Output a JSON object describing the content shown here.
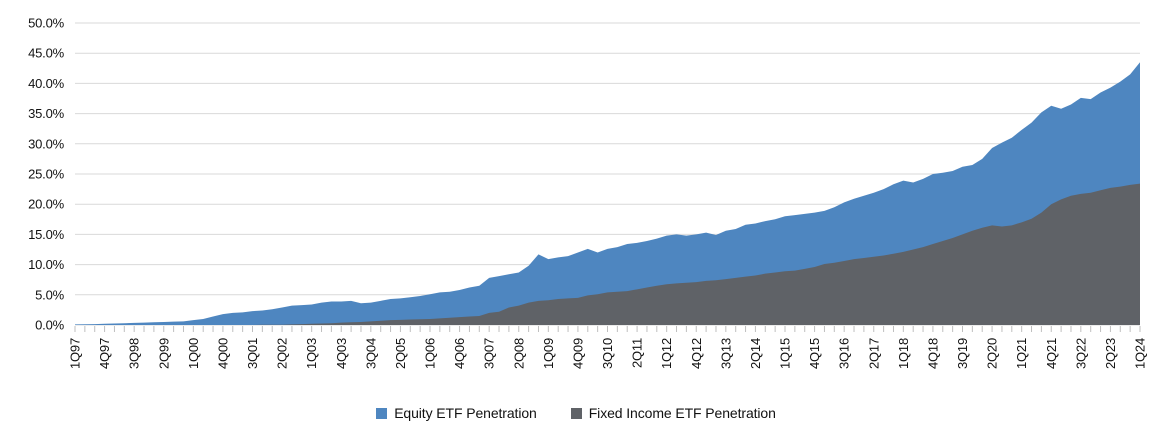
{
  "chart_data": {
    "type": "area",
    "title": "",
    "xlabel": "",
    "ylabel": "",
    "overlapping": true,
    "grid": "horizontal",
    "legend_position": "bottom-center",
    "y_axis": {
      "min": 0,
      "max": 50,
      "step": 5,
      "labels": [
        "0.0%",
        "5.0%",
        "10.0%",
        "15.0%",
        "20.0%",
        "25.0%",
        "30.0%",
        "35.0%",
        "40.0%",
        "45.0%",
        "50.0%"
      ]
    },
    "x_axis": {
      "first_category": "1Q97",
      "last_category": "1Q24",
      "points": 109,
      "label_every_n_quarters": 3,
      "tick_labels": [
        "1Q97",
        "4Q97",
        "3Q98",
        "2Q99",
        "1Q00",
        "4Q00",
        "3Q01",
        "2Q02",
        "1Q03",
        "4Q03",
        "3Q04",
        "2Q05",
        "1Q06",
        "4Q06",
        "3Q07",
        "2Q08",
        "1Q09",
        "4Q09",
        "3Q10",
        "2Q11",
        "1Q12",
        "4Q12",
        "3Q13",
        "2Q14",
        "1Q15",
        "4Q15",
        "3Q16",
        "2Q17",
        "1Q18",
        "4Q18",
        "3Q19",
        "2Q20",
        "1Q21",
        "4Q21",
        "3Q22",
        "2Q23",
        "1Q24"
      ]
    },
    "series": [
      {
        "name": "Equity ETF Penetration",
        "color": "#4E86C0",
        "values": [
          0.1,
          0.12,
          0.15,
          0.2,
          0.25,
          0.3,
          0.35,
          0.4,
          0.45,
          0.5,
          0.55,
          0.6,
          0.8,
          1.0,
          1.4,
          1.8,
          2.0,
          2.1,
          2.3,
          2.4,
          2.6,
          2.9,
          3.2,
          3.3,
          3.4,
          3.7,
          3.9,
          3.9,
          4.0,
          3.6,
          3.7,
          4.0,
          4.3,
          4.4,
          4.6,
          4.8,
          5.1,
          5.4,
          5.5,
          5.8,
          6.2,
          6.5,
          7.8,
          8.1,
          8.4,
          8.7,
          9.8,
          11.7,
          10.9,
          11.2,
          11.4,
          12.0,
          12.6,
          12.0,
          12.6,
          12.9,
          13.4,
          13.6,
          13.9,
          14.3,
          14.8,
          15.0,
          14.8,
          15.0,
          15.3,
          14.9,
          15.6,
          15.9,
          16.6,
          16.8,
          17.2,
          17.5,
          18.0,
          18.2,
          18.4,
          18.6,
          18.9,
          19.5,
          20.3,
          20.9,
          21.4,
          21.9,
          22.5,
          23.3,
          23.9,
          23.6,
          24.2,
          25.0,
          25.2,
          25.5,
          26.2,
          26.5,
          27.5,
          29.3,
          30.2,
          31.0,
          32.3,
          33.5,
          35.2,
          36.3,
          35.8,
          36.5,
          37.6,
          37.4,
          38.5,
          39.3,
          40.3,
          41.5,
          43.5
        ]
      },
      {
        "name": "Fixed Income ETF Penetration",
        "color": "#5F6267",
        "values": [
          0,
          0,
          0,
          0,
          0,
          0,
          0,
          0,
          0,
          0,
          0,
          0,
          0,
          0,
          0,
          0,
          0,
          0,
          0,
          0.05,
          0.05,
          0.05,
          0.1,
          0.15,
          0.2,
          0.25,
          0.3,
          0.4,
          0.45,
          0.5,
          0.6,
          0.7,
          0.8,
          0.85,
          0.9,
          0.95,
          1.0,
          1.1,
          1.2,
          1.3,
          1.4,
          1.5,
          2.0,
          2.2,
          2.9,
          3.2,
          3.7,
          4.0,
          4.1,
          4.3,
          4.4,
          4.5,
          4.9,
          5.1,
          5.4,
          5.5,
          5.6,
          5.9,
          6.2,
          6.5,
          6.75,
          6.9,
          7.0,
          7.1,
          7.3,
          7.4,
          7.6,
          7.8,
          8.0,
          8.2,
          8.5,
          8.7,
          8.9,
          9.0,
          9.3,
          9.6,
          10.1,
          10.3,
          10.6,
          10.9,
          11.1,
          11.3,
          11.5,
          11.8,
          12.1,
          12.5,
          12.9,
          13.4,
          13.9,
          14.4,
          15.0,
          15.6,
          16.1,
          16.5,
          16.3,
          16.5,
          17.0,
          17.6,
          18.6,
          20.0,
          20.8,
          21.4,
          21.7,
          21.9,
          22.3,
          22.7,
          22.9,
          23.2,
          23.4
        ]
      }
    ],
    "colors": {
      "gridline": "#D9D9D9",
      "tick": "#BFBFBF",
      "axis_text": "#111111",
      "background": "#FFFFFF"
    }
  },
  "legend": [
    {
      "label": "Equity ETF Penetration"
    },
    {
      "label": "Fixed Income ETF Penetration"
    }
  ]
}
